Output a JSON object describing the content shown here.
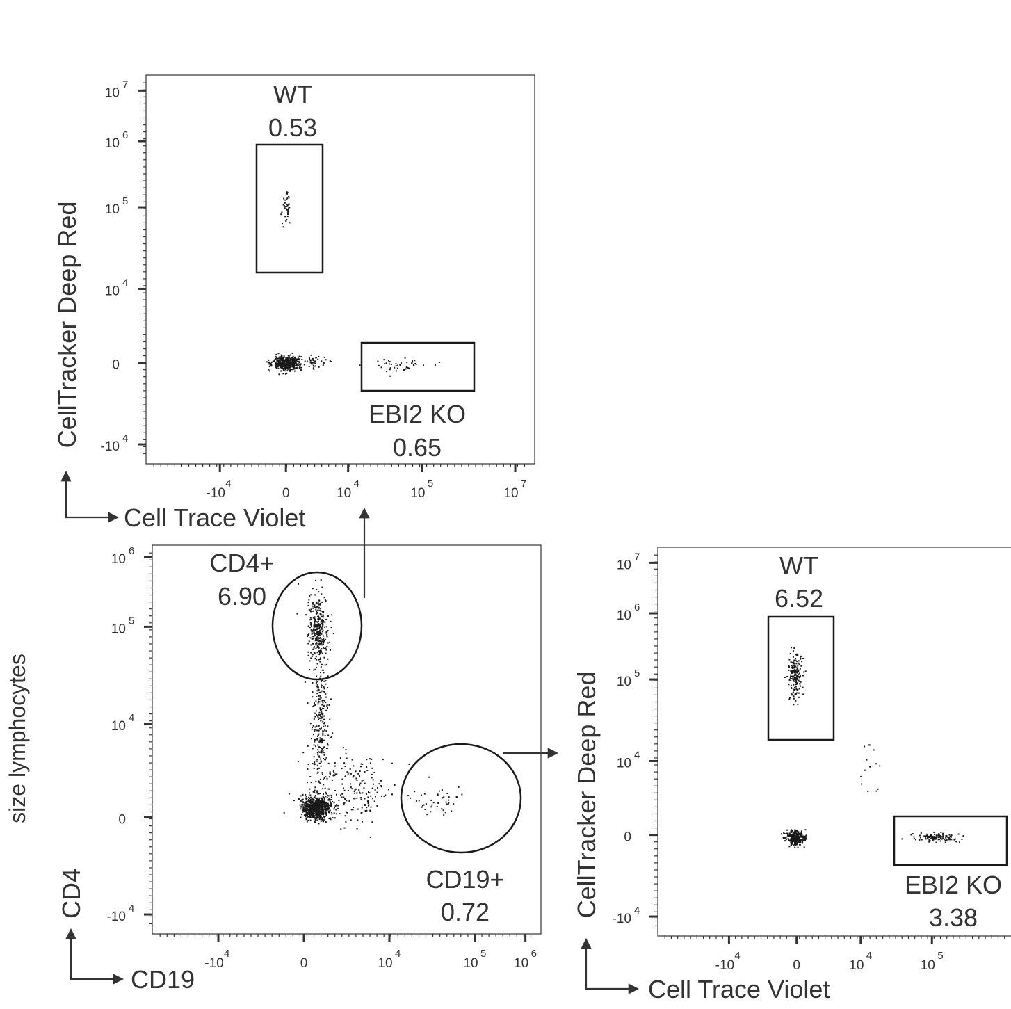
{
  "figure": {
    "side_label": "size lymphocytes",
    "arrow_color": "#333333",
    "dot_color": "#1a1a1a"
  },
  "chart_data": [
    {
      "id": "top",
      "type": "scatter",
      "xlabel": "Cell Trace Violet",
      "ylabel": "CellTracker Deep Red",
      "x_ticks": [
        {
          "base": "-10",
          "exp": "4",
          "pos": 0.19
        },
        {
          "base": "0",
          "exp": "",
          "pos": 0.36
        },
        {
          "base": "10",
          "exp": "4",
          "pos": 0.52
        },
        {
          "base": "10",
          "exp": "5",
          "pos": 0.71
        },
        {
          "base": "10",
          "exp": "7",
          "pos": 0.95
        }
      ],
      "y_ticks": [
        {
          "base": "10",
          "exp": "7",
          "pos": 0.04
        },
        {
          "base": "10",
          "exp": "6",
          "pos": 0.17
        },
        {
          "base": "10",
          "exp": "5",
          "pos": 0.34
        },
        {
          "base": "10",
          "exp": "4",
          "pos": 0.55
        },
        {
          "base": "0",
          "exp": "",
          "pos": 0.74
        },
        {
          "base": "-10",
          "exp": "4",
          "pos": 0.95
        }
      ],
      "gates": [
        {
          "name": "WT",
          "value": "0.53",
          "shape": "rect"
        },
        {
          "name": "EBI2 KO",
          "value": "0.65",
          "shape": "rect"
        }
      ],
      "populations": [
        {
          "name": "negative",
          "cx": 0.36,
          "cy": 0.74,
          "sx": 0.018,
          "sy": 0.01,
          "n": 420
        },
        {
          "name": "negative-tail",
          "cx": 0.43,
          "cy": 0.735,
          "sx": 0.025,
          "sy": 0.009,
          "n": 40
        },
        {
          "name": "WT",
          "cx": 0.36,
          "cy": 0.34,
          "sx": 0.006,
          "sy": 0.022,
          "n": 40
        },
        {
          "name": "EBI2 KO",
          "cx": 0.65,
          "cy": 0.745,
          "sx": 0.035,
          "sy": 0.009,
          "n": 45
        }
      ]
    },
    {
      "id": "bottom-left",
      "type": "scatter",
      "xlabel": "CD19",
      "ylabel": "CD4",
      "x_ticks": [
        {
          "base": "-10",
          "exp": "4",
          "pos": 0.17
        },
        {
          "base": "0",
          "exp": "",
          "pos": 0.39
        },
        {
          "base": "10",
          "exp": "4",
          "pos": 0.61
        },
        {
          "base": "10",
          "exp": "5",
          "pos": 0.83
        },
        {
          "base": "10",
          "exp": "6",
          "pos": 0.96
        }
      ],
      "y_ticks": [
        {
          "base": "10",
          "exp": "6",
          "pos": 0.03
        },
        {
          "base": "10",
          "exp": "5",
          "pos": 0.21
        },
        {
          "base": "10",
          "exp": "4",
          "pos": 0.46
        },
        {
          "base": "0",
          "exp": "",
          "pos": 0.7
        },
        {
          "base": "-10",
          "exp": "4",
          "pos": 0.95
        }
      ],
      "gates": [
        {
          "name": "CD4+",
          "value": "6.90",
          "shape": "ellipse"
        },
        {
          "name": "CD19+",
          "value": "0.72",
          "shape": "ellipse"
        }
      ],
      "populations": [
        {
          "name": "double-negative",
          "cx": 0.42,
          "cy": 0.675,
          "sx": 0.018,
          "sy": 0.014,
          "n": 700
        },
        {
          "name": "CD4+",
          "cx": 0.425,
          "cy": 0.21,
          "sx": 0.013,
          "sy": 0.04,
          "n": 320
        },
        {
          "name": "bridge",
          "cx": 0.43,
          "cy": 0.45,
          "sx": 0.012,
          "sy": 0.1,
          "n": 260
        },
        {
          "name": "spread",
          "cx": 0.5,
          "cy": 0.62,
          "sx": 0.06,
          "sy": 0.05,
          "n": 220
        },
        {
          "name": "CD19+",
          "cx": 0.73,
          "cy": 0.66,
          "sx": 0.04,
          "sy": 0.02,
          "n": 45
        }
      ]
    },
    {
      "id": "bottom-right",
      "type": "scatter",
      "xlabel": "Cell Trace Violet",
      "ylabel": "CellTracker Deep Red",
      "x_ticks": [
        {
          "base": "-10",
          "exp": "4",
          "pos": 0.2
        },
        {
          "base": "0",
          "exp": "",
          "pos": 0.39
        },
        {
          "base": "10",
          "exp": "4",
          "pos": 0.57
        },
        {
          "base": "10",
          "exp": "5",
          "pos": 0.77
        }
      ],
      "y_ticks": [
        {
          "base": "10",
          "exp": "7",
          "pos": 0.04
        },
        {
          "base": "10",
          "exp": "6",
          "pos": 0.17
        },
        {
          "base": "10",
          "exp": "5",
          "pos": 0.34
        },
        {
          "base": "10",
          "exp": "4",
          "pos": 0.55
        },
        {
          "base": "0",
          "exp": "",
          "pos": 0.74
        },
        {
          "base": "-10",
          "exp": "4",
          "pos": 0.95
        }
      ],
      "gates": [
        {
          "name": "WT",
          "value": "6.52",
          "shape": "rect"
        },
        {
          "name": "EBI2 KO",
          "value": "3.38",
          "shape": "rect"
        }
      ],
      "populations": [
        {
          "name": "negative",
          "cx": 0.385,
          "cy": 0.745,
          "sx": 0.013,
          "sy": 0.009,
          "n": 300
        },
        {
          "name": "WT",
          "cx": 0.385,
          "cy": 0.33,
          "sx": 0.009,
          "sy": 0.03,
          "n": 180
        },
        {
          "name": "EBI2 KO",
          "cx": 0.78,
          "cy": 0.745,
          "sx": 0.03,
          "sy": 0.006,
          "n": 120
        },
        {
          "name": "scatter",
          "cx": 0.59,
          "cy": 0.58,
          "sx": 0.012,
          "sy": 0.04,
          "n": 14
        }
      ]
    }
  ]
}
